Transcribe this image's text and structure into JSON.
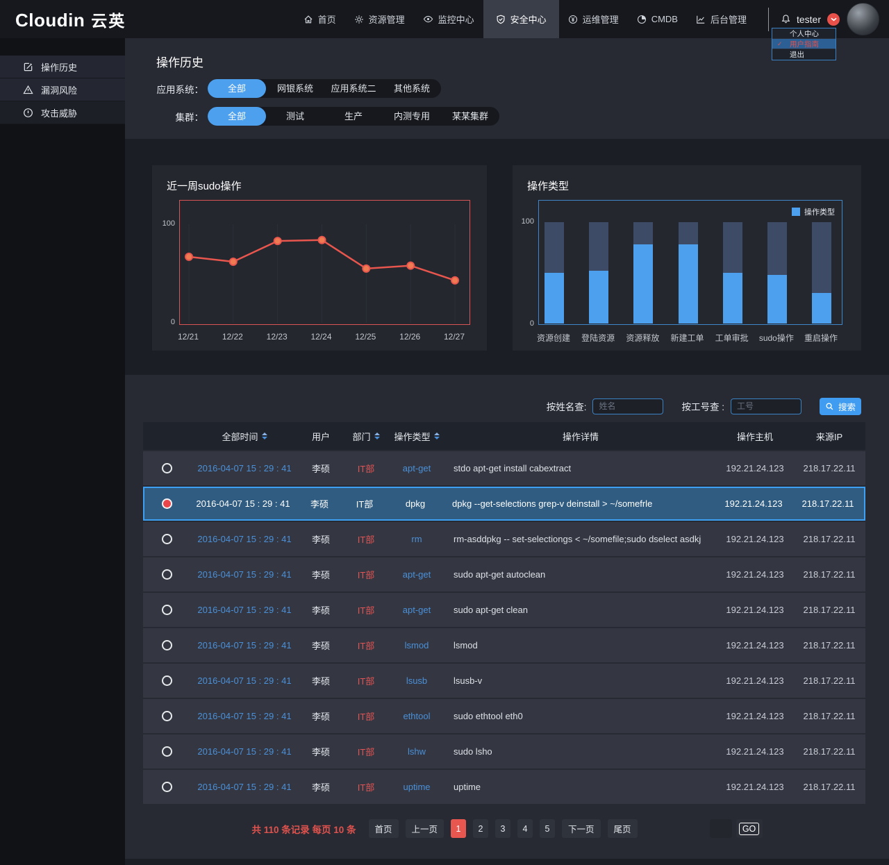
{
  "colors": {
    "accent_blue": "#4da0ee",
    "line_red": "#e8564e",
    "selected_row_bg": "#2f5c80",
    "dept_red": "#e05455",
    "time_blue": "#4a90d9",
    "pagination_red": "#e0524e"
  },
  "header": {
    "logo": "Cloudin",
    "logo_cn": "云英",
    "nav": [
      {
        "label": "首页",
        "icon": "home-icon",
        "active": false
      },
      {
        "label": "资源管理",
        "icon": "gear-icon",
        "active": false
      },
      {
        "label": "监控中心",
        "icon": "monitor-icon",
        "active": false
      },
      {
        "label": "安全中心",
        "icon": "shield-icon",
        "active": true
      },
      {
        "label": "运维管理",
        "icon": "ops-icon",
        "active": false
      },
      {
        "label": "CMDB",
        "icon": "cmdb-icon",
        "active": false
      },
      {
        "label": "后台管理",
        "icon": "admin-chart-icon",
        "active": false
      }
    ],
    "user": {
      "name": "tester"
    },
    "dropdown": [
      {
        "label": "个人中心",
        "checked": false,
        "highlight": false
      },
      {
        "label": "用户指南",
        "checked": true,
        "highlight": true
      },
      {
        "label": "退出",
        "checked": false,
        "highlight": false
      }
    ]
  },
  "sidebar": {
    "items": [
      {
        "label": "操作历史",
        "icon": "edit-icon",
        "darker": false
      },
      {
        "label": "漏洞风险",
        "icon": "warning-icon",
        "darker": false
      },
      {
        "label": "攻击威胁",
        "icon": "alert-icon",
        "darker": true
      }
    ]
  },
  "filters": {
    "title": "操作历史",
    "rows": [
      {
        "label": "应用系统：",
        "options": [
          "全部",
          "网银系统",
          "应用系统二",
          "其他系统"
        ],
        "selected": 0
      },
      {
        "label": "集群：",
        "options": [
          "全部",
          "测试",
          "生产",
          "内测专用",
          "某某集群"
        ],
        "selected": 0
      }
    ]
  },
  "chart_data": [
    {
      "type": "line",
      "title": "近一周sudo操作",
      "x": [
        "12/21",
        "12/22",
        "12/23",
        "12/24",
        "12/25",
        "12/26",
        "12/27"
      ],
      "values": [
        67,
        62,
        83,
        84,
        55,
        58,
        43
      ],
      "ylim": [
        0,
        100
      ],
      "yticks": [
        0,
        100
      ],
      "grid": "vertical",
      "line_color": "#e8564e",
      "dot_fill": "#ef7b52",
      "border_color": "#d95454"
    },
    {
      "type": "bar",
      "title": "操作类型",
      "categories": [
        "资源创建",
        "登陆资源",
        "资源释放",
        "新建工单",
        "工单审批",
        "sudo操作",
        "重启操作"
      ],
      "values": [
        50,
        52,
        78,
        78,
        50,
        48,
        30
      ],
      "ylim": [
        0,
        100
      ],
      "yticks": [
        0,
        100
      ],
      "legend": [
        "操作类型"
      ],
      "legend_position": "top-right",
      "bar_color": "#4da0ee",
      "track_color": "#3d4b66",
      "border_color": "#3f87c9"
    }
  ],
  "search": {
    "name_label": "按姓名查:",
    "name_placeholder": "姓名",
    "id_label": "按工号查 :",
    "id_placeholder": "工号",
    "button_label": "搜索"
  },
  "table": {
    "columns": [
      {
        "label": "全部时间",
        "sortable": true
      },
      {
        "label": "用户",
        "sortable": false
      },
      {
        "label": "部门",
        "sortable": true
      },
      {
        "label": "操作类型",
        "sortable": true
      },
      {
        "label": "操作详情",
        "sortable": false
      },
      {
        "label": "操作主机",
        "sortable": false
      },
      {
        "label": "来源IP",
        "sortable": false
      }
    ],
    "rows": [
      {
        "selected": false,
        "time": "2016-04-07 15 : 29 : 41",
        "user": "李硕",
        "dept": "IT部",
        "type": "apt-get",
        "detail": "stdo apt-get install cabextract",
        "host": "192.21.24.123",
        "ip": "218.17.22.11"
      },
      {
        "selected": true,
        "time": "2016-04-07 15 : 29 : 41",
        "user": "李硕",
        "dept": "IT部",
        "type": "dpkg",
        "detail": "dpkg --get-selections grep-v deinstall > ~/somefrle",
        "host": "192.21.24.123",
        "ip": "218.17.22.11"
      },
      {
        "selected": false,
        "time": "2016-04-07 15 : 29 : 41",
        "user": "李硕",
        "dept": "IT部",
        "type": "rm",
        "detail": "rm-asddpkg -- set-selectiongs < ~/somefile;sudo dselect asdkj",
        "host": "192.21.24.123",
        "ip": "218.17.22.11"
      },
      {
        "selected": false,
        "time": "2016-04-07 15 : 29 : 41",
        "user": "李硕",
        "dept": "IT部",
        "type": "apt-get",
        "detail": "sudo apt-get autoclean",
        "host": "192.21.24.123",
        "ip": "218.17.22.11"
      },
      {
        "selected": false,
        "time": "2016-04-07 15 : 29 : 41",
        "user": "李硕",
        "dept": "IT部",
        "type": "apt-get",
        "detail": "sudo apt-get clean",
        "host": "192.21.24.123",
        "ip": "218.17.22.11"
      },
      {
        "selected": false,
        "time": "2016-04-07 15 : 29 : 41",
        "user": "李硕",
        "dept": "IT部",
        "type": "lsmod",
        "detail": "lsmod",
        "host": "192.21.24.123",
        "ip": "218.17.22.11"
      },
      {
        "selected": false,
        "time": "2016-04-07 15 : 29 : 41",
        "user": "李硕",
        "dept": "IT部",
        "type": "lsusb",
        "detail": "lsusb-v",
        "host": "192.21.24.123",
        "ip": "218.17.22.11"
      },
      {
        "selected": false,
        "time": "2016-04-07 15 : 29 : 41",
        "user": "李硕",
        "dept": "IT部",
        "type": "ethtool",
        "detail": "sudo ethtool eth0",
        "host": "192.21.24.123",
        "ip": "218.17.22.11"
      },
      {
        "selected": false,
        "time": "2016-04-07 15 : 29 : 41",
        "user": "李硕",
        "dept": "IT部",
        "type": "lshw",
        "detail": "sudo lsho",
        "host": "192.21.24.123",
        "ip": "218.17.22.11"
      },
      {
        "selected": false,
        "time": "2016-04-07 15 : 29 : 41",
        "user": "李硕",
        "dept": "IT部",
        "type": "uptime",
        "detail": "uptime",
        "host": "192.21.24.123",
        "ip": "218.17.22.11"
      }
    ]
  },
  "pagination": {
    "summary": "共 110 条记录 每页 10 条",
    "buttons": [
      "首页",
      "上一页",
      "1",
      "2",
      "3",
      "4",
      "5",
      "下一页",
      "尾页"
    ],
    "active": "1",
    "go_value": "",
    "go_label": "GO"
  }
}
